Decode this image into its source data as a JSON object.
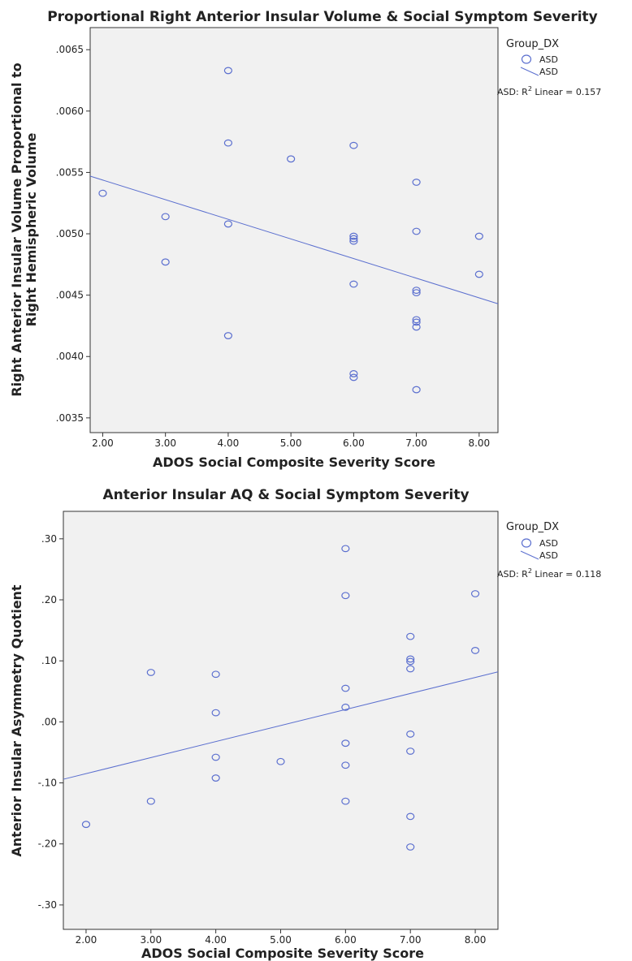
{
  "chart_data": [
    {
      "type": "scatter",
      "title": "Proportional Right Anterior Insular Volume & Social Symptom Severity",
      "xlabel": "ADOS Social Composite Severity Score",
      "ylabel_lines": [
        "Right Anterior Insular Volume Proportional to",
        "Right Hemispheric Volume"
      ],
      "xlim": [
        1.8,
        8.3
      ],
      "ylim": [
        0.00338,
        0.00668
      ],
      "x_ticks": [
        2,
        3,
        4,
        5,
        6,
        7,
        8
      ],
      "x_tick_labels": [
        "2.00",
        "3.00",
        "4.00",
        "5.00",
        "6.00",
        "7.00",
        "8.00"
      ],
      "y_ticks": [
        0.0035,
        0.004,
        0.0045,
        0.005,
        0.0055,
        0.006,
        0.0065
      ],
      "y_tick_labels": [
        ".0035",
        ".0040",
        ".0045",
        ".0050",
        ".0055",
        ".0060",
        ".0065"
      ],
      "legend": {
        "title": "Group_DX",
        "marker_label": "ASD",
        "line_label": "ASD",
        "r2_prefix": "ASD: R",
        "r2_suffix": " Linear = 0.157"
      },
      "series": [
        {
          "name": "ASD",
          "points": [
            [
              2,
              0.00533
            ],
            [
              3,
              0.00514
            ],
            [
              3,
              0.00477
            ],
            [
              4,
              0.00633
            ],
            [
              4,
              0.00574
            ],
            [
              4,
              0.00508
            ],
            [
              4,
              0.00417
            ],
            [
              5,
              0.00561
            ],
            [
              6,
              0.00572
            ],
            [
              6,
              0.00498
            ],
            [
              6,
              0.00496
            ],
            [
              6,
              0.00494
            ],
            [
              6,
              0.00459
            ],
            [
              6,
              0.00386
            ],
            [
              6,
              0.00383
            ],
            [
              7,
              0.00542
            ],
            [
              7,
              0.00502
            ],
            [
              7,
              0.00454
            ],
            [
              7,
              0.00452
            ],
            [
              7,
              0.0043
            ],
            [
              7,
              0.00428
            ],
            [
              7,
              0.00424
            ],
            [
              7,
              0.00373
            ],
            [
              8,
              0.00498
            ],
            [
              8,
              0.00467
            ]
          ]
        }
      ],
      "fit_line": [
        [
          1.8,
          0.00547
        ],
        [
          8.3,
          0.00443
        ]
      ]
    },
    {
      "type": "scatter",
      "title": "Anterior Insular AQ & Social Symptom Severity",
      "xlabel": "ADOS Social Composite Severity Score",
      "ylabel_lines": [
        "Anterior Insular Asymmetry Quotient"
      ],
      "xlim": [
        1.65,
        8.35
      ],
      "ylim": [
        -0.34,
        0.345
      ],
      "x_ticks": [
        2,
        3,
        4,
        5,
        6,
        7,
        8
      ],
      "x_tick_labels": [
        "2.00",
        "3.00",
        "4.00",
        "5.00",
        "6.00",
        "7.00",
        "8.00"
      ],
      "y_ticks": [
        -0.3,
        -0.2,
        -0.1,
        0,
        0.1,
        0.2,
        0.3
      ],
      "y_tick_labels": [
        "-.30",
        "-.20",
        "-.10",
        ".00",
        ".10",
        ".20",
        ".30"
      ],
      "legend": {
        "title": "Group_DX",
        "marker_label": "ASD",
        "line_label": "ASD",
        "r2_prefix": "ASD: R",
        "r2_suffix": " Linear = 0.118"
      },
      "series": [
        {
          "name": "ASD",
          "points": [
            [
              2,
              -0.168
            ],
            [
              3,
              0.081
            ],
            [
              3,
              -0.13
            ],
            [
              4,
              0.078
            ],
            [
              4,
              0.015
            ],
            [
              4,
              -0.058
            ],
            [
              4,
              -0.092
            ],
            [
              5,
              -0.065
            ],
            [
              6,
              0.284
            ],
            [
              6,
              0.207
            ],
            [
              6,
              0.055
            ],
            [
              6,
              0.024
            ],
            [
              6,
              -0.035
            ],
            [
              6,
              -0.071
            ],
            [
              6,
              -0.13
            ],
            [
              7,
              0.14
            ],
            [
              7,
              0.103
            ],
            [
              7,
              0.099
            ],
            [
              7,
              0.087
            ],
            [
              7,
              -0.02
            ],
            [
              7,
              -0.048
            ],
            [
              7,
              -0.155
            ],
            [
              7,
              -0.205
            ],
            [
              8,
              0.21
            ],
            [
              8,
              0.117
            ]
          ]
        }
      ],
      "fit_line": [
        [
          1.65,
          -0.094
        ],
        [
          8.35,
          0.082
        ]
      ]
    }
  ]
}
